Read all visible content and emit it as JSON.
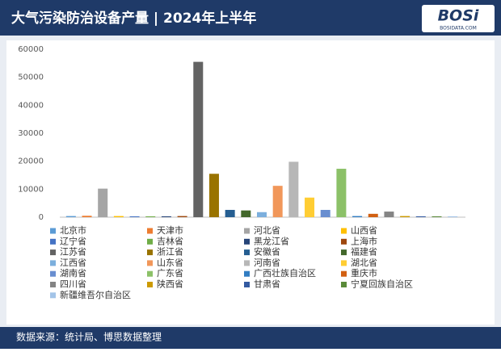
{
  "header": {
    "title": "大气污染防治设备产量 | 2024年上半年",
    "logo": "BOSi",
    "logo_sub": "BOSIDATA.COM"
  },
  "chart_data": {
    "type": "bar",
    "categories": [
      "北京市",
      "天津市",
      "河北省",
      "山西省",
      "辽宁省",
      "吉林省",
      "黑龙江省",
      "上海市",
      "江苏省",
      "浙江省",
      "安徽省",
      "福建省",
      "江西省",
      "山东省",
      "河南省",
      "湖北省",
      "湖南省",
      "广东省",
      "广西壮族自治区",
      "重庆市",
      "四川省",
      "陕西省",
      "甘肃省",
      "宁夏回族自治区",
      "新疆维吾尔自治区"
    ],
    "values": [
      400,
      500,
      10200,
      400,
      300,
      300,
      300,
      400,
      55500,
      15500,
      2600,
      2400,
      1800,
      11200,
      19800,
      7000,
      2600,
      17300,
      400,
      1200,
      2000,
      400,
      300,
      300,
      300
    ],
    "colors": [
      "#5b9bd5",
      "#ed7d31",
      "#a5a5a5",
      "#ffc000",
      "#4472c4",
      "#70ad47",
      "#264478",
      "#9e480e",
      "#636363",
      "#997300",
      "#255e91",
      "#43682b",
      "#7cafdd",
      "#f1975a",
      "#b7b7b7",
      "#ffcd33",
      "#698ed0",
      "#8cc168",
      "#327dc2",
      "#d26012",
      "#848484",
      "#cc9a00",
      "#335aa1",
      "#5a8a39",
      "#a3c4e8"
    ],
    "ylim": [
      0,
      60000
    ],
    "yticks": [
      0,
      10000,
      20000,
      30000,
      40000,
      50000,
      60000
    ],
    "grid": false,
    "legend": "bottom"
  },
  "footer": {
    "source": "数据来源：统计局、博思数据整理"
  }
}
